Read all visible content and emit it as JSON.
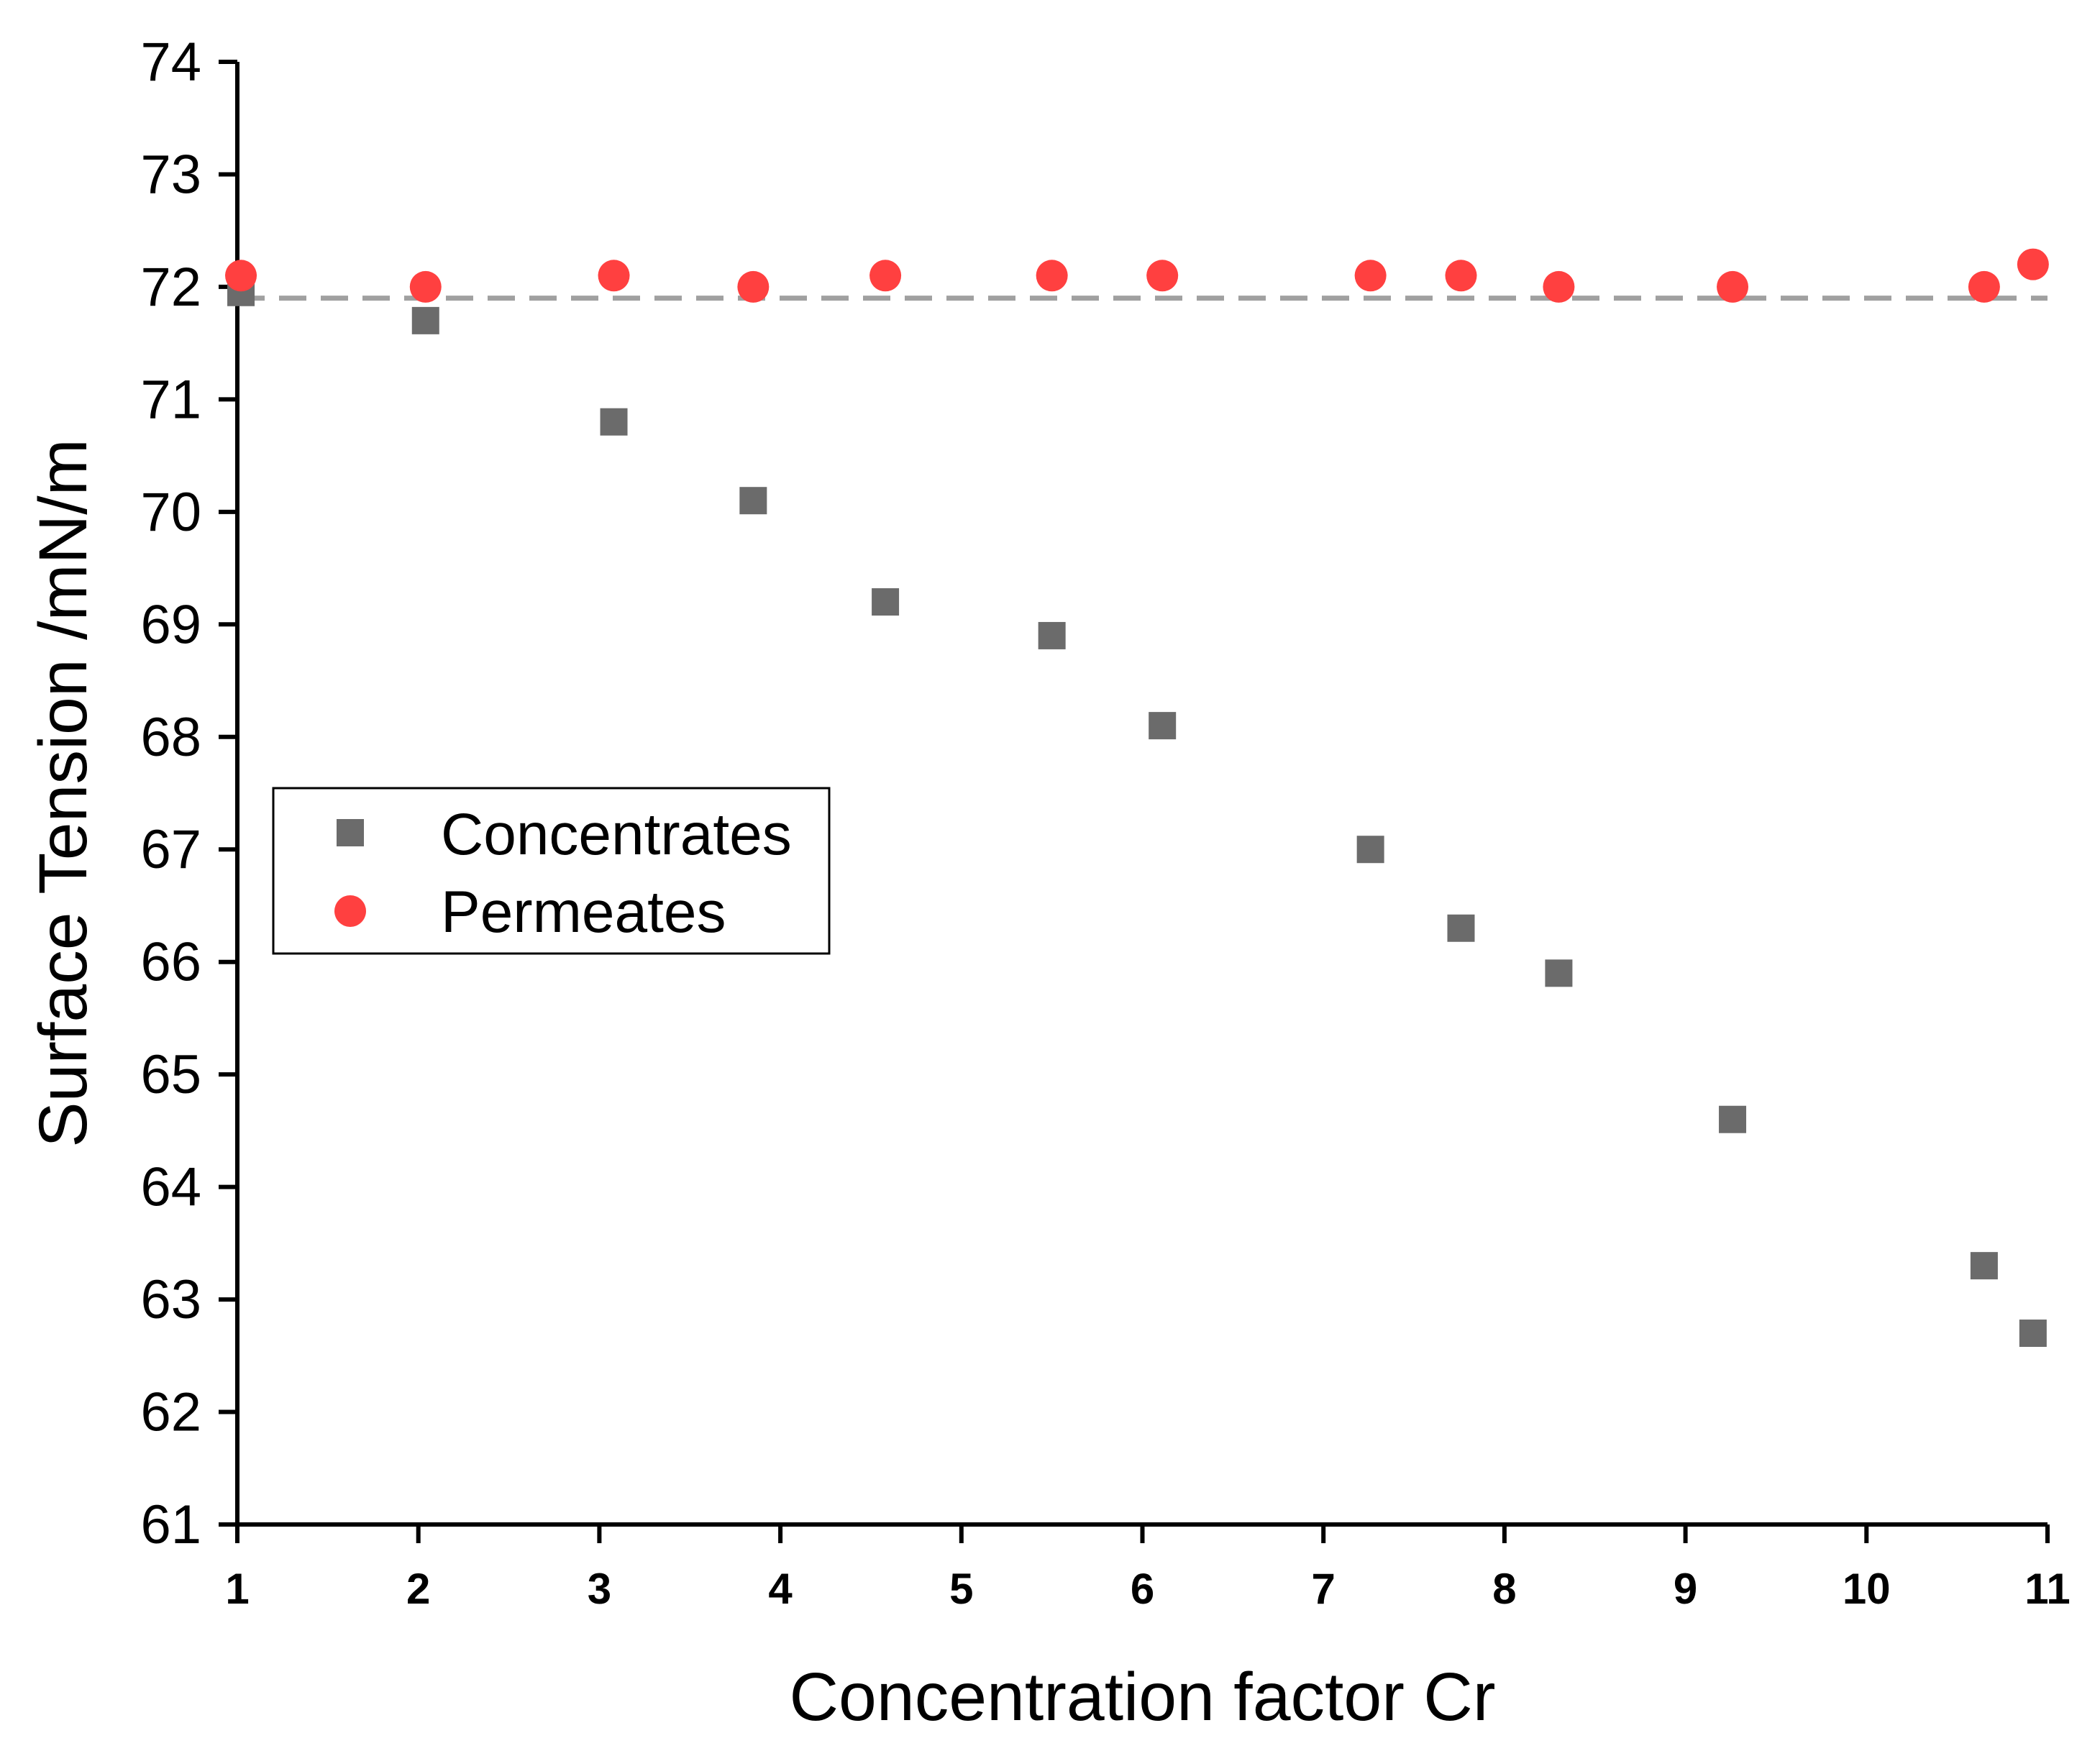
{
  "chart_data": {
    "type": "scatter",
    "title": "",
    "xlabel": "Concentration factor Cr",
    "ylabel": "Surface Tension /mN/m",
    "xlim": [
      1,
      11
    ],
    "ylim": [
      61,
      74
    ],
    "xticks": [
      1,
      2,
      3,
      4,
      5,
      6,
      7,
      8,
      9,
      10,
      11
    ],
    "yticks": [
      61,
      62,
      63,
      64,
      65,
      66,
      67,
      68,
      69,
      70,
      71,
      72,
      73,
      74
    ],
    "grid": false,
    "legend_position": "middle-left",
    "reference_line": {
      "y": 71.9,
      "style": "dashed",
      "color": "#a0a0a0"
    },
    "series": [
      {
        "name": "Concentrates",
        "marker": "square",
        "color": "#6b6b6b",
        "x": [
          1.02,
          2.04,
          3.08,
          3.85,
          4.58,
          5.5,
          6.11,
          7.26,
          7.76,
          8.3,
          9.26,
          10.65,
          10.92
        ],
        "y": [
          71.95,
          71.7,
          70.8,
          70.1,
          69.2,
          68.9,
          68.1,
          67.0,
          66.3,
          65.9,
          64.6,
          63.3,
          62.7
        ]
      },
      {
        "name": "Permeates",
        "marker": "circle",
        "color": "#ff4040",
        "x": [
          1.02,
          2.04,
          3.08,
          3.85,
          4.58,
          5.5,
          6.11,
          7.26,
          7.76,
          8.3,
          9.26,
          10.65,
          10.92
        ],
        "y": [
          72.1,
          72.0,
          72.1,
          72.0,
          72.1,
          72.1,
          72.1,
          72.1,
          72.1,
          72.0,
          72.0,
          72.0,
          72.2
        ]
      }
    ]
  }
}
